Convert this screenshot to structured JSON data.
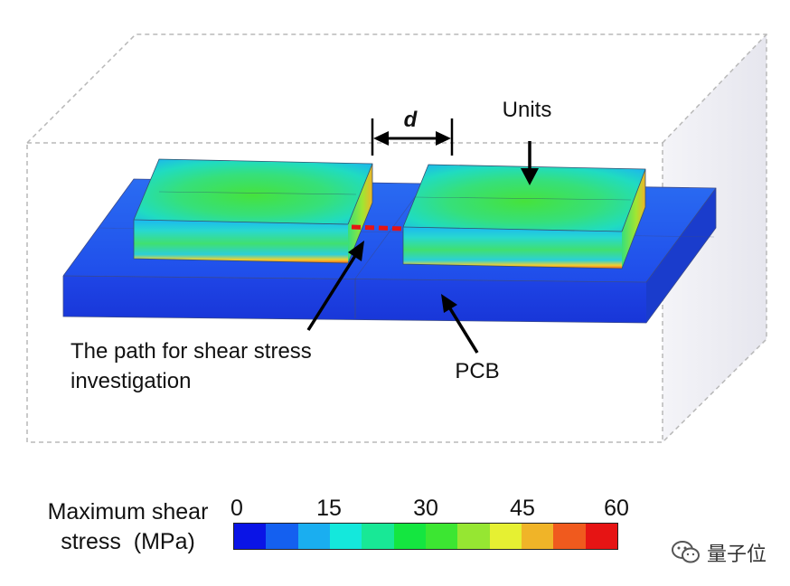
{
  "figure": {
    "labels": {
      "gap": "d",
      "units": "Units",
      "path_line1": "The path for shear stress",
      "path_line2": "investigation",
      "pcb": "PCB"
    }
  },
  "legend": {
    "title_line1": "Maximum shear",
    "title_line2": "stress  (MPa)",
    "ticks": [
      "0",
      "15",
      "30",
      "45",
      "60"
    ],
    "colors": [
      "#0a14e6",
      "#1460f0",
      "#1aaef0",
      "#14e8dc",
      "#18e896",
      "#14e640",
      "#3ce632",
      "#96e632",
      "#e6f032",
      "#f0b428",
      "#f05a1e",
      "#e61414"
    ]
  },
  "watermark": {
    "text": "量子位",
    "icon": "wechat-icon"
  }
}
